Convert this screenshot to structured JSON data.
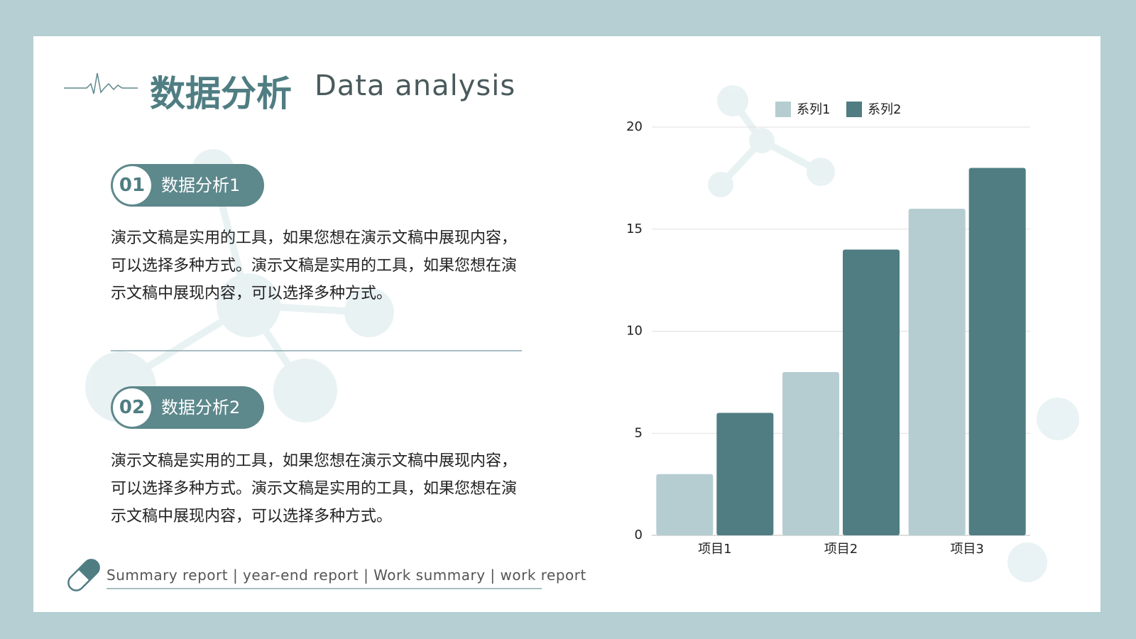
{
  "header": {
    "title": "数据分析",
    "subtitle": "Data analysis"
  },
  "sections": [
    {
      "number": "01",
      "heading": "数据分析1",
      "text": "演示文稿是实用的工具，如果您想在演示文稿中展现内容，可以选择多种方式。演示文稿是实用的工具，如果您想在演示文稿中展现内容，可以选择多种方式。"
    },
    {
      "number": "02",
      "heading": "数据分析2",
      "text": "演示文稿是实用的工具，如果您想在演示文稿中展现内容，可以选择多种方式。演示文稿是实用的工具，如果您想在演示文稿中展现内容，可以选择多种方式。"
    }
  ],
  "footer": "Summary report | year-end report | Work summary | work report",
  "chart_data": {
    "type": "bar",
    "categories": [
      "项目1",
      "项目2",
      "项目3"
    ],
    "series": [
      {
        "name": "系列1",
        "color": "#b5cdd1",
        "values": [
          3,
          8,
          16
        ]
      },
      {
        "name": "系列2",
        "color": "#4f7d82",
        "values": [
          6,
          14,
          18
        ]
      }
    ],
    "ylim": [
      0,
      20
    ],
    "yticks": [
      0,
      5,
      10,
      15,
      20
    ],
    "grid": true,
    "legend": "top"
  }
}
